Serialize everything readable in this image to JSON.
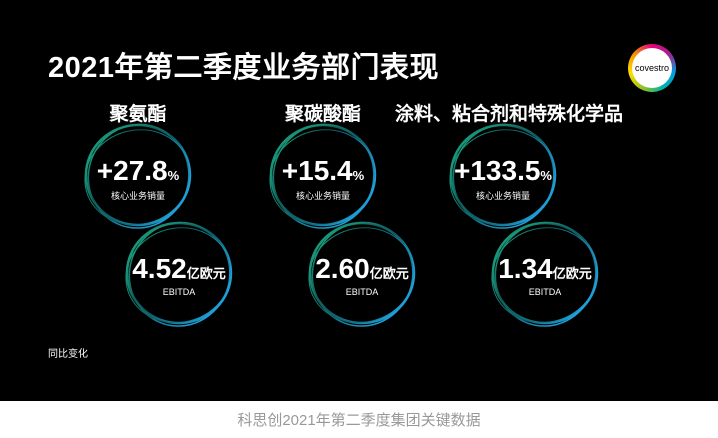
{
  "title": "2021年第二季度业务部门表现",
  "logo_text": "covestro",
  "segments": [
    {
      "name": "聚氨酯",
      "volume": "+27.8",
      "volume_unit": "%",
      "volume_label": "核心业务销量",
      "ebitda": "4.52",
      "ebitda_unit": "亿欧元",
      "ebitda_label": "EBITDA"
    },
    {
      "name": "聚碳酸酯",
      "volume": "+15.4",
      "volume_unit": "%",
      "volume_label": "核心业务销量",
      "ebitda": "2.60",
      "ebitda_unit": "亿欧元",
      "ebitda_label": "EBITDA"
    },
    {
      "name": "涂料、粘合剂和特殊化学品",
      "volume": "+133.5",
      "volume_unit": "%",
      "volume_label": "核心业务销量",
      "ebitda": "1.34",
      "ebitda_unit": "亿欧元",
      "ebitda_label": "EBITDA"
    }
  ],
  "footnote": "同比变化",
  "caption": "科思创2021年第二季度集团关键数据",
  "colors": {
    "ring_green": "#1fb38a",
    "ring_blue": "#1e9fd8",
    "background": "#000000"
  }
}
